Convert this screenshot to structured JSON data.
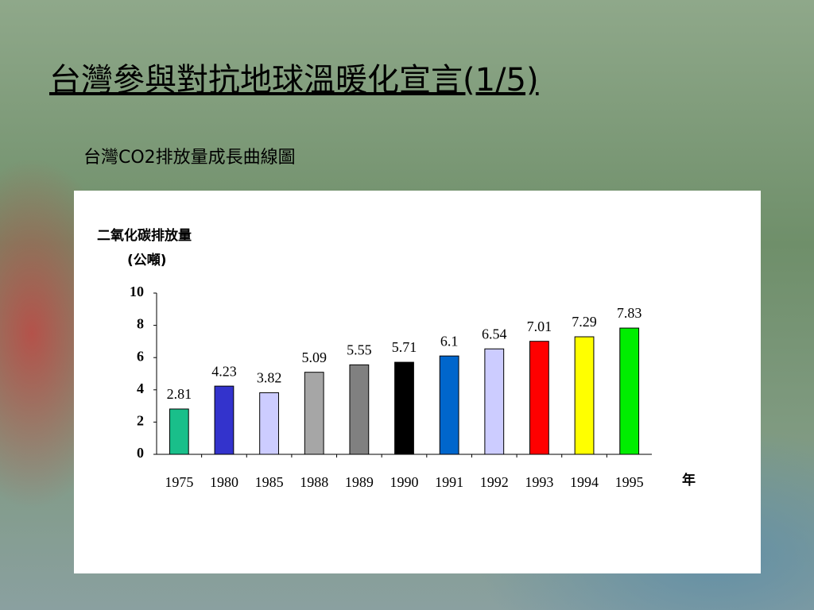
{
  "slide": {
    "title": "台灣參與對抗地球溫暖化宣言(1/5)",
    "subtitle": "台灣CO2排放量成長曲線圖"
  },
  "chart_data": {
    "type": "bar",
    "ylabel": "二氧化碳排放量",
    "yunit": "(公噸)",
    "xlabel": "年",
    "categories": [
      "1975",
      "1980",
      "1985",
      "1988",
      "1989",
      "1990",
      "1991",
      "1992",
      "1993",
      "1994",
      "1995"
    ],
    "values": [
      2.81,
      4.23,
      3.82,
      5.09,
      5.55,
      5.71,
      6.1,
      6.54,
      7.01,
      7.29,
      7.83
    ],
    "colors": [
      "#19bf8a",
      "#3333cc",
      "#ccccff",
      "#a6a6a6",
      "#808080",
      "#000000",
      "#0066cc",
      "#ccccff",
      "#ff0000",
      "#ffff00",
      "#00ee00"
    ],
    "ylim": [
      0,
      10
    ],
    "yticks": [
      0,
      2,
      4,
      6,
      8,
      10
    ],
    "grid": false
  }
}
